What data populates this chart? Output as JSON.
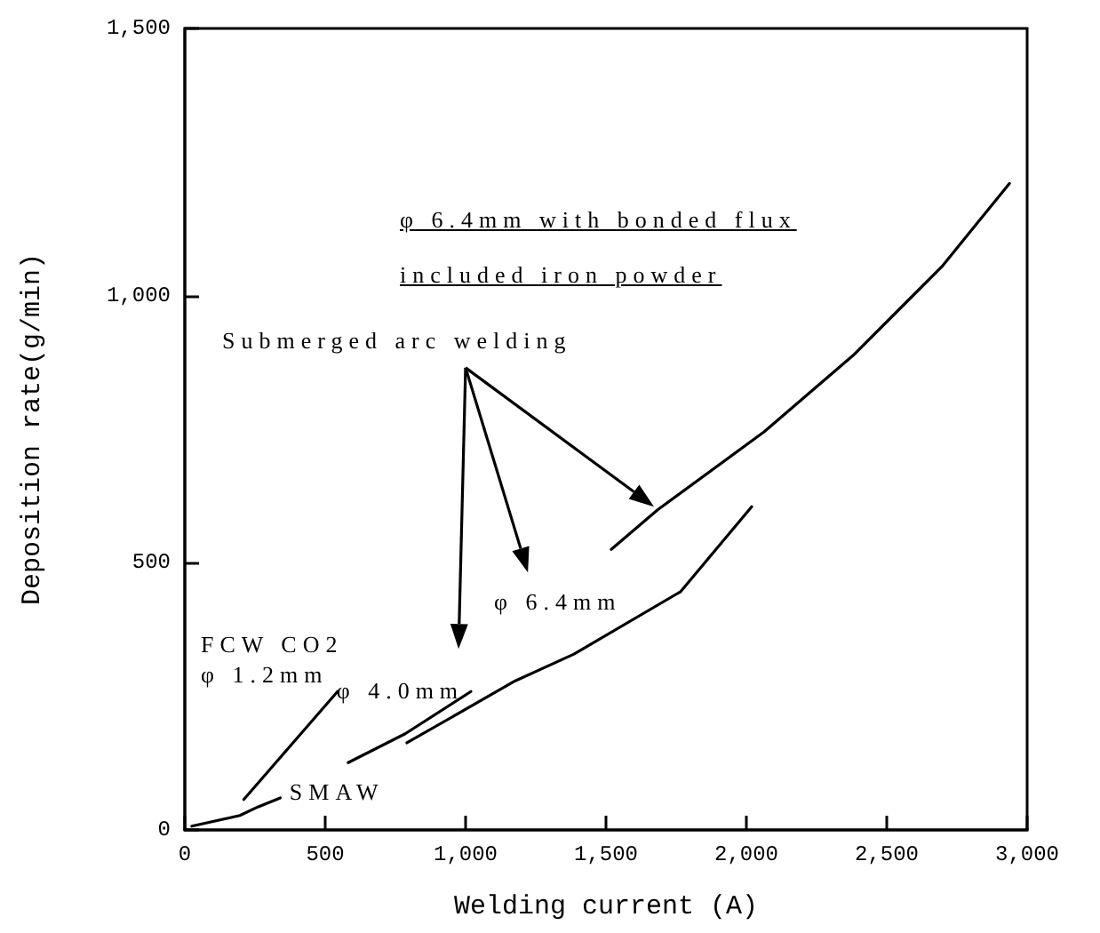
{
  "chart_data": {
    "type": "line",
    "xlabel": "Welding current (A)",
    "ylabel": "Deposition rate(g/min)",
    "xlim": [
      0,
      3000
    ],
    "ylim": [
      0,
      1500
    ],
    "xticks": [
      0,
      500,
      {
        "value": 1000,
        "label": "1,000"
      },
      {
        "value": 1500,
        "label": "1,500"
      },
      {
        "value": 2000,
        "label": "2,000"
      },
      {
        "value": 2500,
        "label": "2,500"
      },
      {
        "value": 3000,
        "label": "3,000"
      }
    ],
    "yticks": [
      0,
      500,
      {
        "value": 1000,
        "label": "1,000"
      },
      {
        "value": 1500,
        "label": "1,500"
      }
    ],
    "line_style": "solid",
    "series": [
      {
        "name": "SMAW",
        "color": "#000000",
        "x": [
          25,
          196,
          260,
          340
        ],
        "values": [
          7,
          27,
          43,
          60
        ]
      },
      {
        "name": "FCW CO2\nφ 1.2mm",
        "color": "#000000",
        "x": [
          210,
          544
        ],
        "values": [
          57,
          259
        ]
      },
      {
        "name": "φ 4.0mm",
        "color": "#000000",
        "x": [
          582,
          785,
          1019
        ],
        "values": [
          126,
          180,
          259
        ]
      },
      {
        "name": "φ 6.4mm",
        "color": "#000000",
        "x": [
          791,
          1177,
          1386,
          1766,
          2019
        ],
        "values": [
          163,
          279,
          329,
          446,
          605
        ]
      },
      {
        "name": "φ 6.4mm with bonded flux\nincluded iron powder",
        "color": "#000000",
        "x": [
          1519,
          1684,
          2063,
          2380,
          2696,
          2937
        ],
        "values": [
          525,
          599,
          745,
          888,
          1054,
          1210
        ]
      }
    ],
    "annotations": [
      "Submerged arc welding"
    ]
  }
}
